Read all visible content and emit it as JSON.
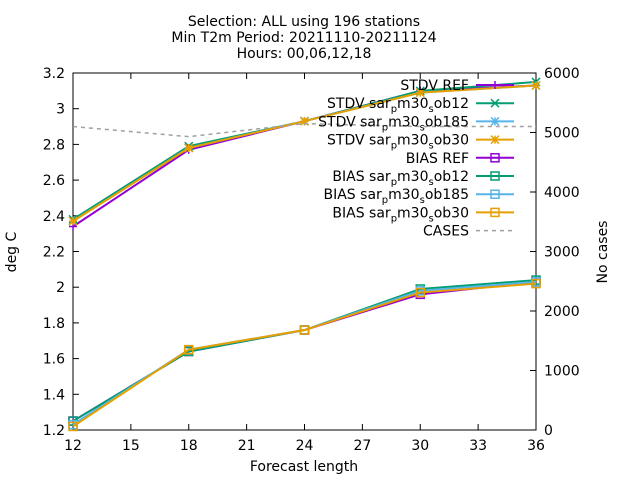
{
  "chart_data": {
    "type": "line",
    "title_lines": [
      "Selection: ALL using   196 stations",
      "Min T2m   Period: 20211110-20211124",
      "Hours: 00,06,12,18"
    ],
    "xlabel": "Forecast length",
    "ylabel": "deg C",
    "y2label": "No cases",
    "x_ticks": [
      12,
      15,
      18,
      21,
      24,
      27,
      30,
      33,
      36
    ],
    "y_ticks": [
      "1.2",
      "1.4",
      "1.6",
      "1.8",
      "2",
      "2.2",
      "2.4",
      "2.6",
      "2.8",
      "3",
      "3.2"
    ],
    "y2_ticks": [
      0,
      1000,
      2000,
      3000,
      4000,
      5000,
      6000
    ],
    "xlim": [
      12,
      36
    ],
    "ylim": [
      1.2,
      3.2
    ],
    "y2lim": [
      0,
      6000
    ],
    "grid": false,
    "legend_position": "top-right",
    "x": [
      12,
      18,
      24,
      30,
      36
    ],
    "series": [
      {
        "name": "STDV REF",
        "axis": "y1",
        "marker": "cross",
        "dash": false,
        "color": "#9400d3",
        "values": [
          2.34,
          2.77,
          2.93,
          3.1,
          3.13
        ]
      },
      {
        "name": "STDV sar_pm30_sob12",
        "axis": "y1",
        "marker": "x",
        "dash": false,
        "color": "#009e73",
        "values": [
          2.38,
          2.79,
          2.93,
          3.1,
          3.15
        ]
      },
      {
        "name": "STDV sar_pm30_sob185",
        "axis": "y1",
        "marker": "star",
        "dash": false,
        "color": "#56b4e9",
        "values": [
          2.37,
          2.78,
          2.93,
          3.09,
          3.13
        ]
      },
      {
        "name": "STDV sar_pm30_sob30",
        "axis": "y1",
        "marker": "star",
        "dash": false,
        "color": "#e69f00",
        "values": [
          2.37,
          2.78,
          2.93,
          3.09,
          3.13
        ]
      },
      {
        "name": "BIAS REF",
        "axis": "y1",
        "marker": "square",
        "dash": false,
        "color": "#9400d3",
        "values": [
          1.25,
          1.64,
          1.76,
          1.96,
          2.03
        ]
      },
      {
        "name": "BIAS sar_pm30_sob12",
        "axis": "y1",
        "marker": "square",
        "dash": false,
        "color": "#009e73",
        "values": [
          1.25,
          1.64,
          1.76,
          1.99,
          2.04
        ]
      },
      {
        "name": "BIAS sar_pm30_sob185",
        "axis": "y1",
        "marker": "square",
        "dash": false,
        "color": "#56b4e9",
        "values": [
          1.23,
          1.65,
          1.76,
          1.98,
          2.03
        ]
      },
      {
        "name": "BIAS sar_pm30_sob30",
        "axis": "y1",
        "marker": "square",
        "dash": false,
        "color": "#e69f00",
        "values": [
          1.22,
          1.65,
          1.76,
          1.97,
          2.02
        ]
      },
      {
        "name": "CASES",
        "axis": "y2",
        "marker": "none",
        "dash": true,
        "color": "#a0a0a0",
        "values": [
          5100,
          4930,
          5150,
          5100,
          5100
        ]
      }
    ],
    "legend": [
      {
        "pre": "STDV sar",
        "sub1": "p",
        "mid": "m30",
        "sub2": "s",
        "post": "ob12",
        "si": 1
      },
      {
        "pre": "STDV sar",
        "sub1": "p",
        "mid": "m30",
        "sub2": "s",
        "post": "ob185",
        "si": 2
      },
      {
        "pre": "STDV sar",
        "sub1": "p",
        "mid": "m30",
        "sub2": "s",
        "post": "ob30",
        "si": 3
      },
      {
        "pre": "BIAS REF",
        "sub1": "",
        "mid": "",
        "sub2": "",
        "post": "",
        "si": 4
      },
      {
        "pre": "BIAS sar",
        "sub1": "p",
        "mid": "m30",
        "sub2": "s",
        "post": "ob12",
        "si": 5
      },
      {
        "pre": "BIAS sar",
        "sub1": "p",
        "mid": "m30",
        "sub2": "s",
        "post": "ob185",
        "si": 6
      },
      {
        "pre": "BIAS sar",
        "sub1": "p",
        "mid": "m30",
        "sub2": "s",
        "post": "ob30",
        "si": 7
      },
      {
        "pre": "CASES",
        "sub1": "",
        "mid": "",
        "sub2": "",
        "post": "",
        "si": 8
      }
    ],
    "legend_first": {
      "pre": "STDV REF",
      "si": 0
    }
  }
}
